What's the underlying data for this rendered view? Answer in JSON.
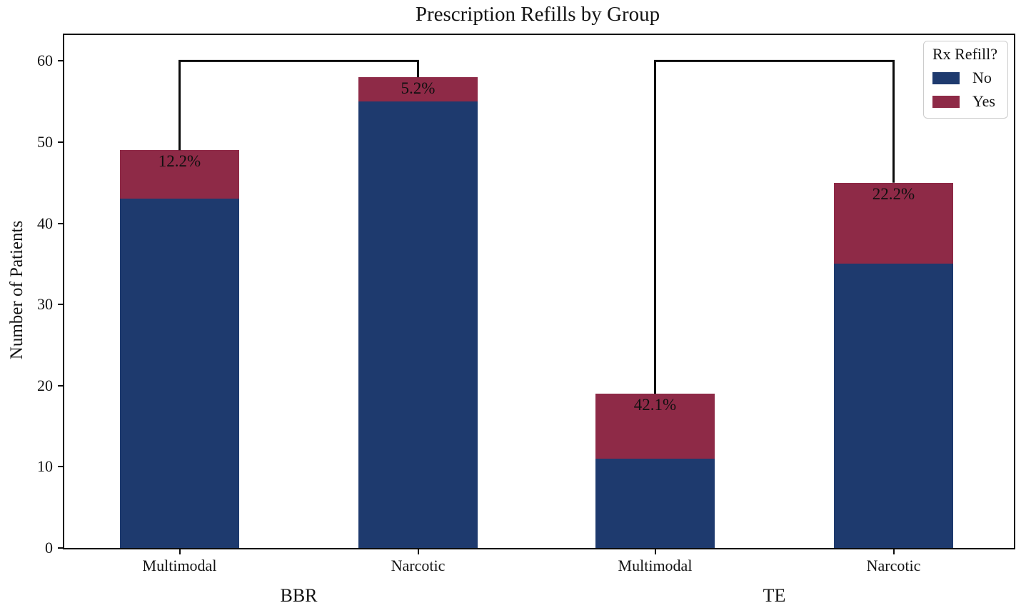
{
  "chart_data": {
    "type": "bar",
    "stacked": true,
    "title": "Prescription Refills by Group",
    "xlabel": "",
    "ylabel": "Number of Patients",
    "ylim": [
      0,
      63.2
    ],
    "yticks": [
      0,
      10,
      20,
      30,
      40,
      50,
      60
    ],
    "grid": false,
    "colors": {
      "no": "#1e3a6e",
      "yes": "#8e2a47"
    },
    "categories": [
      "Multimodal",
      "Narcotic",
      "Multimodal",
      "Narcotic"
    ],
    "series": [
      {
        "name": "No",
        "values": [
          43,
          55,
          11,
          35
        ]
      },
      {
        "name": "Yes",
        "values": [
          6,
          3,
          8,
          10
        ]
      }
    ],
    "groups": [
      {
        "label": "BBR",
        "bars": [
          {
            "category": "Multimodal",
            "no": 43,
            "yes": 6,
            "total": 49,
            "pct_label": "12.2%"
          },
          {
            "category": "Narcotic",
            "no": 55,
            "yes": 3,
            "total": 58,
            "pct_label": "5.2%"
          }
        ]
      },
      {
        "label": "TE",
        "bars": [
          {
            "category": "Multimodal",
            "no": 11,
            "yes": 8,
            "total": 19,
            "pct_label": "42.1%"
          },
          {
            "category": "Narcotic",
            "no": 35,
            "yes": 10,
            "total": 45,
            "pct_label": "22.2%"
          }
        ]
      }
    ],
    "brackets": [
      {
        "from_bar": 0,
        "to_bar": 1,
        "y": 60
      },
      {
        "from_bar": 2,
        "to_bar": 3,
        "y": 60
      }
    ],
    "legend": {
      "title": "Rx Refill?",
      "position": "upper right",
      "entries": [
        {
          "label": "No",
          "color": "#1e3a6e"
        },
        {
          "label": "Yes",
          "color": "#8e2a47"
        }
      ]
    }
  }
}
